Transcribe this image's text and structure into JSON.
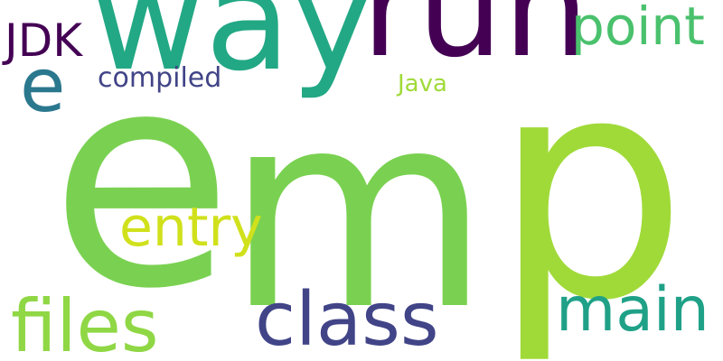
{
  "words": {
    "e_big": {
      "text": "e",
      "color": "#7ad151"
    },
    "m_big": {
      "text": "m",
      "color": "#7ad151"
    },
    "p_big": {
      "text": "p",
      "color": "#a0da39"
    },
    "way": {
      "text": "way",
      "color": "#22a884"
    },
    "run": {
      "text": "run",
      "color": "#440154"
    },
    "point": {
      "text": "point",
      "color": "#4ac16d"
    },
    "jdk": {
      "text": "JDK",
      "color": "#440154"
    },
    "e_small": {
      "text": "e",
      "color": "#2a788e"
    },
    "compiled": {
      "text": "compiled",
      "color": "#414487"
    },
    "java": {
      "text": "Java",
      "color": "#a0da39"
    },
    "entry": {
      "text": "entry",
      "color": "#d0e11c"
    },
    "files": {
      "text": "files",
      "color": "#8fd744"
    },
    "class": {
      "text": "class",
      "color": "#414487"
    },
    "main": {
      "text": "main",
      "color": "#1fa187"
    }
  }
}
